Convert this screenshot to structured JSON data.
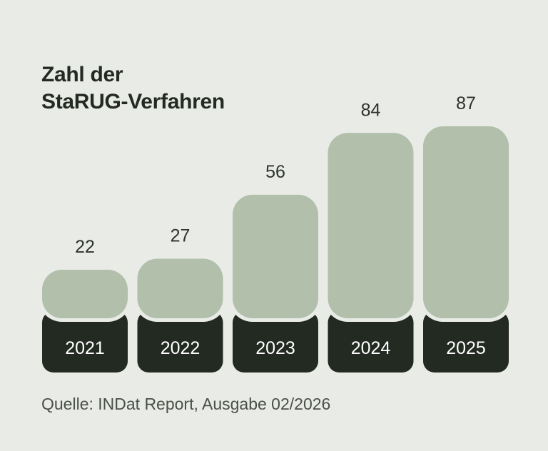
{
  "colors": {
    "background": "#e9ebe7",
    "bar": "#b1bfab",
    "base": "#232a22",
    "base_text": "#ffffff",
    "value_text": "#2d332c"
  },
  "chart_data": {
    "type": "bar",
    "title_lines": [
      "Zahl der",
      "StaRUG-Verfahren"
    ],
    "categories": [
      "2021",
      "2022",
      "2023",
      "2024",
      "2025"
    ],
    "values": [
      22,
      27,
      56,
      84,
      87
    ],
    "xlabel": "",
    "ylabel": "",
    "ylim": [
      0,
      87
    ],
    "grid": false,
    "legend": "none",
    "source": "Quelle: INDat Report, Ausgabe 02/2026"
  }
}
